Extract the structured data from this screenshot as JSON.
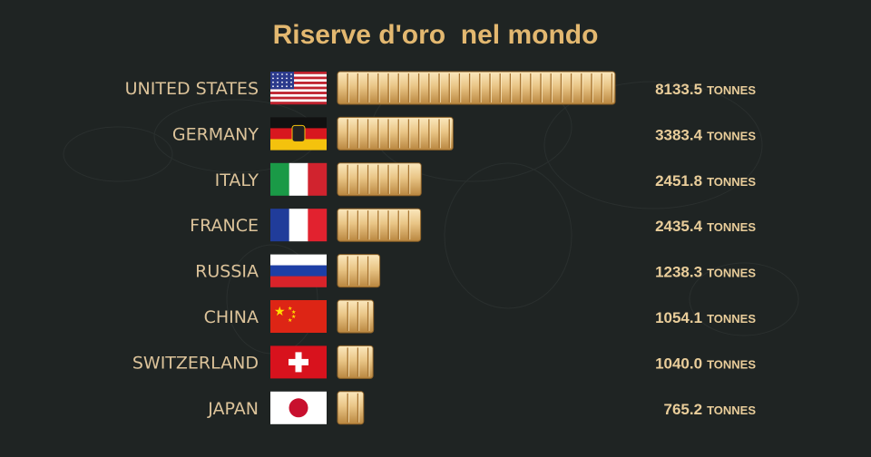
{
  "title": "Riserve d'oro  nel mondo",
  "colors": {
    "background": "#1f2423",
    "gold_light": "#f6dfae",
    "gold_dark": "#c08f4e",
    "text": "#dcc39a"
  },
  "chart_data": {
    "type": "bar",
    "orientation": "horizontal",
    "title": "Riserve d'oro  nel mondo",
    "unit": "TONNES",
    "categories": [
      "UNITED STATES",
      "GERMANY",
      "ITALY",
      "FRANCE",
      "RUSSIA",
      "CHINA",
      "SWITZERLAND",
      "JAPAN"
    ],
    "values": [
      8133.5,
      3383.4,
      2451.8,
      2435.4,
      1238.3,
      1054.1,
      1040.0,
      765.2
    ],
    "value_labels": [
      "8133.5",
      "3383.4",
      "2451.8",
      "2435.4",
      "1238.3",
      "1054.1",
      "1040.0",
      "765.2"
    ],
    "flags": [
      "flag-usa-icon",
      "flag-germany-icon",
      "flag-italy-icon",
      "flag-france-icon",
      "flag-russia-icon",
      "flag-china-icon",
      "flag-switzerland-icon",
      "flag-japan-icon"
    ],
    "legend": "none",
    "grid": false
  }
}
